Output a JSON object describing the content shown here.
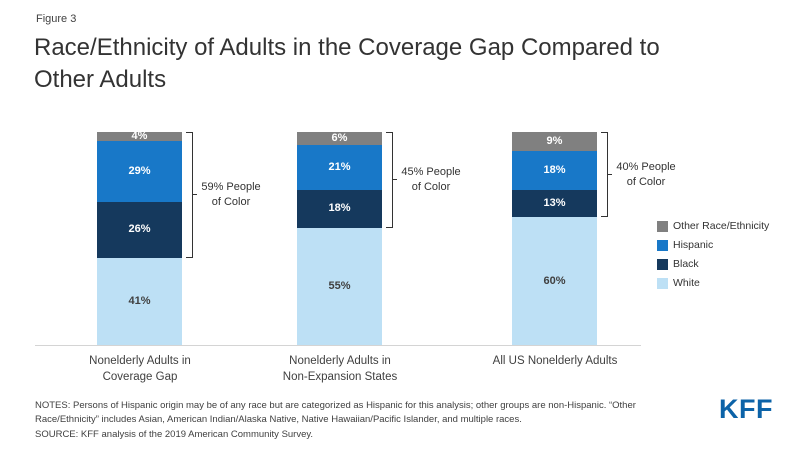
{
  "figure_label": "Figure 3",
  "title_line1": "Race/Ethnicity of Adults in the Coverage Gap Compared to",
  "title_line2": "Other Adults",
  "chart_data": {
    "type": "bar",
    "stacked": true,
    "unit": "%",
    "ylim": [
      0,
      100
    ],
    "grid": false,
    "legend_position": "right",
    "categories": [
      [
        "Nonelderly Adults in",
        "Coverage Gap"
      ],
      [
        "Nonelderly Adults in",
        "Non-Expansion States"
      ],
      [
        "All US Nonelderly Adults"
      ]
    ],
    "series": [
      {
        "name": "White",
        "color": "#bde0f5",
        "label_color": "#404040",
        "values": [
          41,
          55,
          60
        ]
      },
      {
        "name": "Black",
        "color": "#15395d",
        "label_color": "#ffffff",
        "values": [
          26,
          18,
          13
        ]
      },
      {
        "name": "Hispanic",
        "color": "#1878c8",
        "label_color": "#ffffff",
        "values": [
          29,
          21,
          18
        ]
      },
      {
        "name": "Other Race/Ethnicity",
        "color": "#808080",
        "label_color": "#ffffff",
        "values": [
          4,
          6,
          9
        ]
      }
    ],
    "annotations": [
      {
        "text": "59% People of Color",
        "value": 59
      },
      {
        "text": "45% People of Color",
        "value": 45
      },
      {
        "text": "40% People of Color",
        "value": 40
      }
    ],
    "legend": [
      {
        "label": "Other Race/Ethnicity",
        "color": "#808080"
      },
      {
        "label": "Hispanic",
        "color": "#1878c8"
      },
      {
        "label": "Black",
        "color": "#15395d"
      },
      {
        "label": "White",
        "color": "#bde0f5"
      }
    ]
  },
  "notes_line1": "NOTES: Persons of Hispanic origin may be of any race but are categorized as Hispanic for this analysis; other groups are non-Hispanic. “Other Race/Ethnicity” includes Asian, American Indian/Alaska Native, Native Hawaiian/Pacific Islander, and multiple races.",
  "notes_line2": "SOURCE: KFF analysis of the 2019 American Community Survey.",
  "logo_text": "KFF"
}
